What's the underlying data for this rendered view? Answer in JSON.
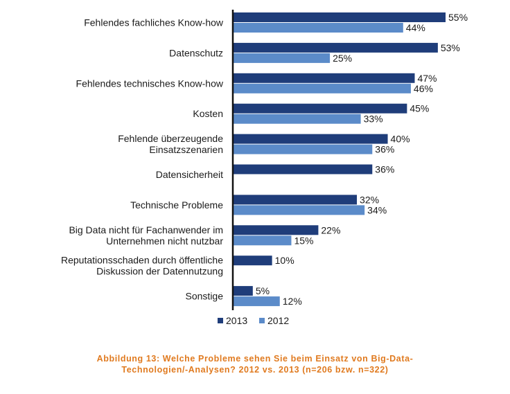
{
  "chart_data": {
    "type": "bar",
    "orientation": "horizontal",
    "categories": [
      [
        "Fehlendes fachliches Know-how"
      ],
      [
        "Datenschutz"
      ],
      [
        "Fehlendes technisches Know-how"
      ],
      [
        "Kosten"
      ],
      [
        "Fehlende überzeugende",
        "Einsatzszenarien"
      ],
      [
        "Datensicherheit"
      ],
      [
        "Technische Probleme"
      ],
      [
        "Big Data nicht für Fachanwender im",
        "Unternehmen nicht nutzbar"
      ],
      [
        "Reputationsschaden durch öffentliche",
        "Diskussion der Datennutzung"
      ],
      [
        "Sonstige"
      ]
    ],
    "series": [
      {
        "name": "2013",
        "color": "#1f3d7a",
        "values": [
          55,
          53,
          47,
          45,
          40,
          36,
          32,
          22,
          10,
          5
        ],
        "labels": [
          "55%",
          "53%",
          "47%",
          "45%",
          "40%",
          "36%",
          "32%",
          "22%",
          "10%",
          "5%"
        ]
      },
      {
        "name": "2012",
        "color": "#5b8bc9",
        "values": [
          44,
          25,
          46,
          33,
          36,
          null,
          34,
          15,
          null,
          12
        ],
        "labels": [
          "44%",
          "25%",
          "46%",
          "33%",
          "36%",
          "",
          "34%",
          "15%",
          "",
          "12%"
        ]
      }
    ],
    "xlim": [
      0,
      55
    ],
    "legend_position": "bottom",
    "caption": [
      "Abbildung 13: Welche Probleme sehen Sie beim Einsatz von Big-Data-",
      "Technologien/-Analysen? 2012 vs. 2013 (n=206 bzw. n=322)"
    ]
  }
}
